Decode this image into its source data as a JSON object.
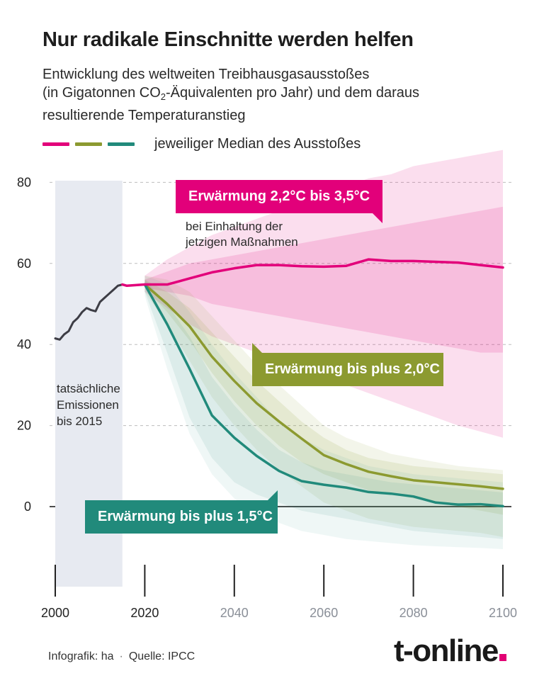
{
  "title": "Nur radikale Einschnitte werden helfen",
  "subtitle": {
    "line1": "Entwicklung des weltweiten Treibhausgasausstoßes",
    "line2_pre": "(in Gigatonnen CO",
    "line2_sub": "2",
    "line2_post": "-Äquivalenten pro Jahr) und dem daraus",
    "line3": "resultierende Temperaturanstieg"
  },
  "legend": {
    "label": "jeweiliger Median des Ausstoßes"
  },
  "colors": {
    "magenta": "#e2007a",
    "olive": "#8c9a30",
    "teal": "#218a7b",
    "history": "#3d3d45",
    "history_band": "#e7eaf1"
  },
  "annotations": {
    "callout_current": "Erwärmung 2,2°C bis 3,5°C",
    "note_current_line1": "bei Einhaltung der",
    "note_current_line2": "jetzigen Maßnahmen",
    "callout_2c": "Erwärmung bis plus 2,0°C",
    "callout_15c": "Erwärmung bis plus 1,5°C",
    "history_line1": "tatsächliche",
    "history_line2": "Emissionen",
    "history_line3": "bis 2015"
  },
  "chart_data": {
    "type": "line",
    "title": "",
    "xlabel": "",
    "ylabel": "",
    "xlim": [
      2000,
      2100
    ],
    "ylim": [
      -20,
      90
    ],
    "x_ticks": [
      2000,
      2020,
      2040,
      2060,
      2080,
      2100
    ],
    "y_ticks": [
      0,
      20,
      40,
      60,
      80
    ],
    "grid": "horizontal dashed",
    "series": [
      {
        "key": "historical",
        "x": [
          2000,
          2001,
          2002,
          2003,
          2004,
          2005,
          2006,
          2007,
          2008,
          2009,
          2010,
          2011,
          2012,
          2013,
          2014,
          2015
        ],
        "values": [
          41.5,
          41.2,
          42.5,
          43.3,
          45.5,
          46.5,
          48,
          49,
          48.5,
          48.2,
          50.5,
          51.5,
          52.5,
          53.5,
          54.5,
          54.8
        ]
      },
      {
        "key": "current_policies",
        "x": [
          2015,
          2016,
          2020,
          2025,
          2030,
          2035,
          2040,
          2045,
          2050,
          2055,
          2060,
          2065,
          2070,
          2075,
          2080,
          2085,
          2090,
          2095,
          2100
        ],
        "values": [
          54.8,
          54.5,
          54.8,
          54.8,
          56.3,
          57.8,
          58.8,
          59.6,
          59.6,
          59.3,
          59.2,
          59.4,
          61,
          60.6,
          60.6,
          60.4,
          60.2,
          59.6,
          59
        ],
        "band_x": [
          2020,
          2025,
          2030,
          2035,
          2040,
          2045,
          2050,
          2055,
          2060,
          2065,
          2070,
          2075,
          2080,
          2085,
          2090,
          2095,
          2100
        ],
        "band_low": [
          54,
          53,
          52,
          50,
          49,
          48,
          47,
          46,
          45,
          44,
          43,
          42,
          41,
          40,
          39,
          38,
          38
        ],
        "band_high": [
          56,
          58,
          60,
          61,
          62,
          63,
          64,
          65,
          66,
          67,
          68,
          69,
          70,
          71,
          72,
          73,
          74
        ],
        "range_low": [
          53,
          49,
          45,
          42,
          40,
          38,
          36,
          34,
          32,
          30,
          28,
          26,
          24,
          22,
          20,
          18.5,
          17
        ],
        "range_high": [
          57,
          61,
          64,
          67,
          69,
          71,
          73,
          75,
          77,
          79,
          81,
          82,
          84,
          85,
          86,
          87,
          88
        ]
      },
      {
        "key": "two_degrees",
        "x": [
          2020,
          2025,
          2030,
          2035,
          2040,
          2045,
          2050,
          2055,
          2060,
          2065,
          2070,
          2075,
          2080,
          2085,
          2090,
          2095,
          2100
        ],
        "values": [
          54.8,
          50,
          44.5,
          37,
          31,
          25.5,
          21,
          16.8,
          12.7,
          10.5,
          8.6,
          7.5,
          6.5,
          6,
          5.5,
          5,
          4.4
        ],
        "band_low": [
          54,
          48,
          41,
          33,
          26,
          20,
          15,
          11,
          8,
          6,
          4,
          3,
          2,
          1,
          0,
          -1,
          -2
        ],
        "band_high": [
          56,
          53,
          49,
          43,
          37,
          31,
          26,
          21,
          17,
          14,
          12,
          11,
          10,
          9.5,
          9,
          8.5,
          8
        ],
        "range_low": [
          53,
          45,
          36,
          27,
          20,
          14,
          9,
          5,
          1,
          -1,
          -3,
          -4,
          -5,
          -5.5,
          -6,
          -6.5,
          -7.5
        ],
        "range_high": [
          57,
          56,
          53,
          47,
          41,
          35,
          30,
          25,
          20,
          17,
          15,
          13,
          12,
          11,
          10,
          9.5,
          9
        ]
      },
      {
        "key": "one_point_five_degrees",
        "x": [
          2020,
          2025,
          2030,
          2035,
          2040,
          2045,
          2050,
          2055,
          2060,
          2065,
          2070,
          2075,
          2080,
          2085,
          2090,
          2095,
          2100
        ],
        "values": [
          54.8,
          45,
          34,
          22.5,
          17,
          12.5,
          8.8,
          6.3,
          5.4,
          4.7,
          3.6,
          3.2,
          2.5,
          1,
          0.5,
          0.6,
          0.1
        ],
        "band_low": [
          53,
          38,
          22,
          12,
          6,
          3,
          1,
          -1,
          -2,
          -3,
          -4,
          -5,
          -6,
          -6.5,
          -7,
          -7.5,
          -8
        ],
        "band_high": [
          56,
          50,
          42,
          32,
          25,
          19,
          14,
          11,
          9,
          8,
          7,
          6,
          5.5,
          5,
          4.5,
          4,
          3.5
        ],
        "range_low": [
          52,
          34,
          18,
          8,
          2,
          -2,
          -4,
          -6,
          -7,
          -8,
          -8.5,
          -9,
          -9.5,
          -9.8,
          -10,
          -10.2,
          -10.5
        ],
        "range_high": [
          57,
          55,
          48,
          40,
          33,
          27,
          21,
          17,
          14,
          12,
          10,
          9,
          8,
          7.5,
          7,
          6.5,
          6
        ]
      }
    ]
  },
  "footer": {
    "credit": "Infografik: ha",
    "separator": "·",
    "source": "Quelle: IPCC"
  },
  "logo": {
    "text": "t-online"
  }
}
